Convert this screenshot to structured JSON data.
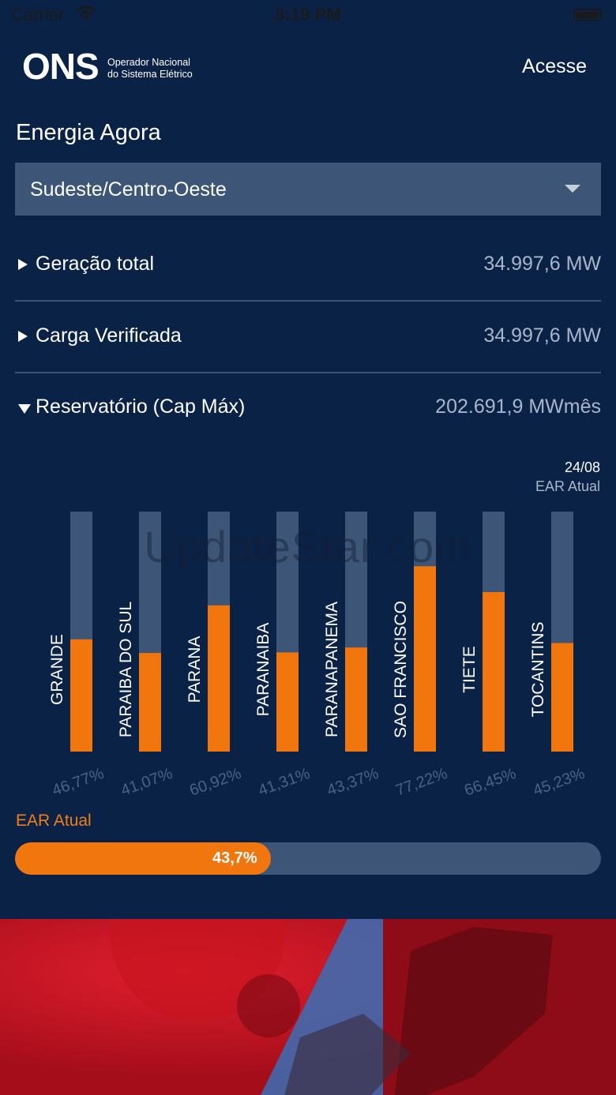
{
  "status_bar": {
    "carrier": "Carrier",
    "time": "3:19 PM"
  },
  "header": {
    "logo_word": "ONS",
    "logo_subtitle_line1": "Operador Nacional",
    "logo_subtitle_line2": "do Sistema Elétrico",
    "login_label": "Acesse"
  },
  "page_title": "Energia Agora",
  "region_select": {
    "selected": "Sudeste/Centro-Oeste"
  },
  "metrics": [
    {
      "label": "Geração total",
      "value": "34.997,6 MW",
      "expanded": false
    },
    {
      "label": "Carga Verificada",
      "value": "34.997,6 MW",
      "expanded": false
    },
    {
      "label": "Reservatório (Cap Máx)",
      "value": "202.691,9 MWmês",
      "expanded": true
    }
  ],
  "reservoir_chart": {
    "date": "24/08",
    "subtitle": "EAR Atual",
    "colors": {
      "fill": "#f2760e",
      "track": "#3d5677",
      "value_label": "#4a6283"
    }
  },
  "chart_data": {
    "type": "bar",
    "categories": [
      "GRANDE",
      "PARAIBA DO SUL",
      "PARANA",
      "PARANAIBA",
      "PARANAPANEMA",
      "SAO FRANCISCO",
      "TIETE",
      "TOCANTINS"
    ],
    "values": [
      46.77,
      41.07,
      60.92,
      41.31,
      43.37,
      77.22,
      66.45,
      45.23
    ],
    "value_labels": [
      "46,77%",
      "41,07%",
      "60,92%",
      "41,31%",
      "43,37%",
      "77,22%",
      "66,45%",
      "45,23%"
    ],
    "ylim": [
      0,
      100
    ]
  },
  "ear_total": {
    "label": "EAR Atual",
    "value_label": "43,7%",
    "value": 43.7
  },
  "watermark": "UpdateStar.com"
}
